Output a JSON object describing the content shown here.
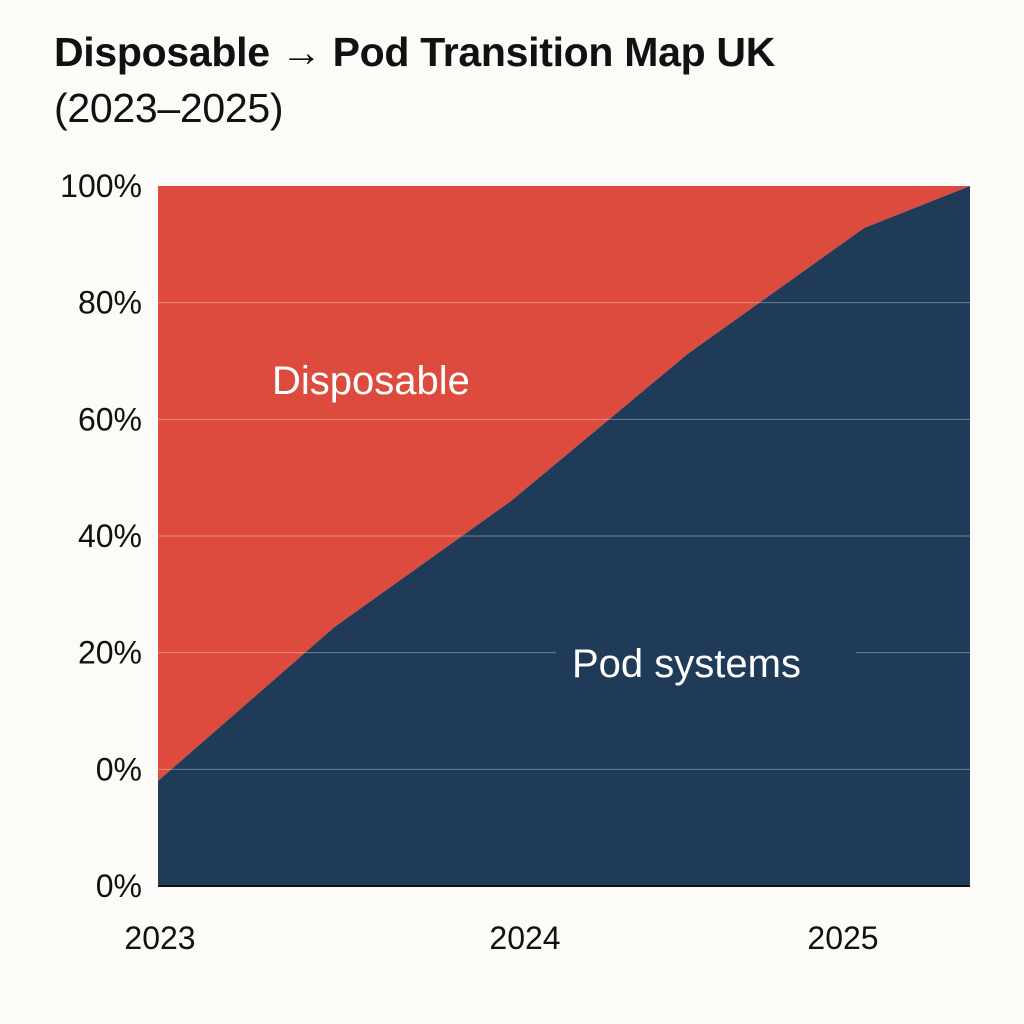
{
  "title": {
    "line1": "Disposable → Pod Transition Map UK",
    "line2": "(2023–2025)"
  },
  "chart_data": {
    "type": "area",
    "title": "Disposable → Pod Transition Map UK (2023–2025)",
    "stacked": true,
    "normalized_to_100": true,
    "x": [
      2023,
      2023.5,
      2024,
      2024.5,
      2025,
      2025.3
    ],
    "x_tick_labels": [
      "2023",
      "2024",
      "2025"
    ],
    "y_tick_labels": [
      "0%",
      "0%",
      "20%",
      "40%",
      "60%",
      "80%",
      "100%"
    ],
    "ylim": [
      0,
      100
    ],
    "grid": true,
    "series": [
      {
        "name": "Pod systems",
        "color": "#1f3b57",
        "values": [
          15,
          37,
          55,
          76,
          94,
          100
        ]
      },
      {
        "name": "Disposable",
        "color": "#dd4b3e",
        "values": [
          85,
          63,
          45,
          24,
          6,
          0
        ]
      }
    ],
    "area_labels": {
      "disposable": "Disposable",
      "pod": "Pod systems"
    }
  }
}
